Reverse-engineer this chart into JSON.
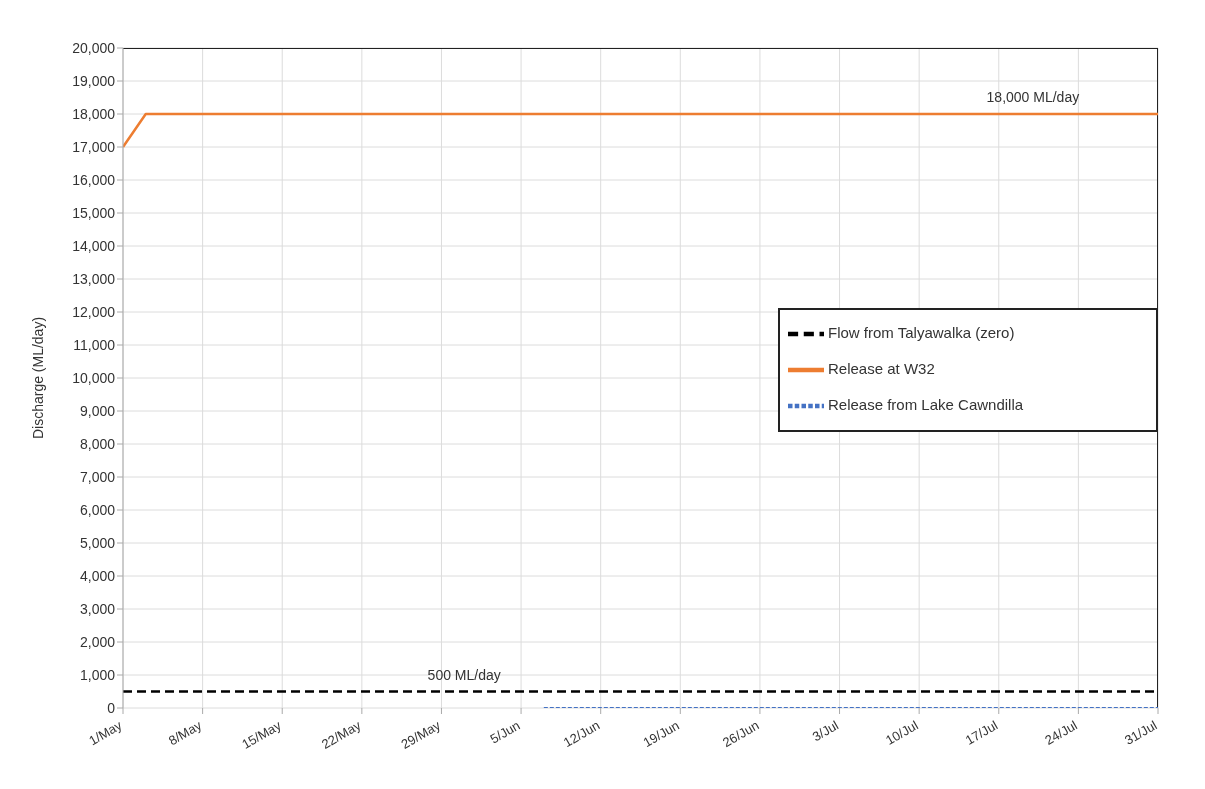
{
  "chart_data": {
    "type": "line",
    "ylabel": "Discharge (ML/day)",
    "series": [
      {
        "name": "Release at W32",
        "color": "#ed7d31",
        "line_style": "solid",
        "x": [
          "--05-01",
          "--05-03",
          "--07-31"
        ],
        "values": [
          17000,
          18000,
          18000
        ]
      },
      {
        "name": "Release from Lake Cawndilla",
        "color": "#4472c4",
        "line_style": "dotted",
        "x": [
          "--06-07",
          "--07-31"
        ],
        "values": [
          0,
          0
        ]
      },
      {
        "name": "Flow from Talyawalka (zero)",
        "color": "#000000",
        "line_style": "dashed",
        "x": [
          "--05-01",
          "--07-31"
        ],
        "values": [
          500,
          500
        ]
      }
    ],
    "xlim": [
      "--05-01",
      "--07-31"
    ],
    "xticks": [
      {
        "value": "--05-01",
        "label": "1/May"
      },
      {
        "value": "--05-08",
        "label": "8/May"
      },
      {
        "value": "--05-15",
        "label": "15/May"
      },
      {
        "value": "--05-22",
        "label": "22/May"
      },
      {
        "value": "--05-29",
        "label": "29/May"
      },
      {
        "value": "--06-05",
        "label": "5/Jun"
      },
      {
        "value": "--06-12",
        "label": "12/Jun"
      },
      {
        "value": "--06-19",
        "label": "19/Jun"
      },
      {
        "value": "--06-26",
        "label": "26/Jun"
      },
      {
        "value": "--07-03",
        "label": "3/Jul"
      },
      {
        "value": "--07-10",
        "label": "10/Jul"
      },
      {
        "value": "--07-17",
        "label": "17/Jul"
      },
      {
        "value": "--07-24",
        "label": "24/Jul"
      },
      {
        "value": "--07-31",
        "label": "31/Jul"
      }
    ],
    "ylim": [
      0,
      20000
    ],
    "yticks": [
      0,
      {
        "value": 1000,
        "label": "1,000"
      },
      {
        "value": 2000,
        "label": "2,000"
      },
      {
        "value": 3000,
        "label": "3,000"
      },
      {
        "value": 4000,
        "label": "4,000"
      },
      {
        "value": 5000,
        "label": "5,000"
      },
      {
        "value": 6000,
        "label": "6,000"
      },
      {
        "value": 7000,
        "label": "7,000"
      },
      {
        "value": 8000,
        "label": "8,000"
      },
      {
        "value": 9000,
        "label": "9,000"
      },
      {
        "value": 10000,
        "label": "10,000"
      },
      {
        "value": 11000,
        "label": "11,000"
      },
      {
        "value": 12000,
        "label": "12,000"
      },
      {
        "value": 13000,
        "label": "13,000"
      },
      {
        "value": 14000,
        "label": "14,000"
      },
      {
        "value": 15000,
        "label": "15,000"
      },
      {
        "value": 16000,
        "label": "16,000"
      },
      {
        "value": 17000,
        "label": "17,000"
      },
      {
        "value": 18000,
        "label": "18,000"
      },
      {
        "value": 19000,
        "label": "19,000"
      },
      {
        "value": 20000,
        "label": "20,000"
      }
    ],
    "annotations": [
      {
        "text": "18,000 ML/day",
        "x": "--07-20",
        "y": 18000
      },
      {
        "text": "500 ML/day",
        "x": "--05-31",
        "y": 500
      }
    ],
    "grid": true,
    "legend": "right"
  }
}
